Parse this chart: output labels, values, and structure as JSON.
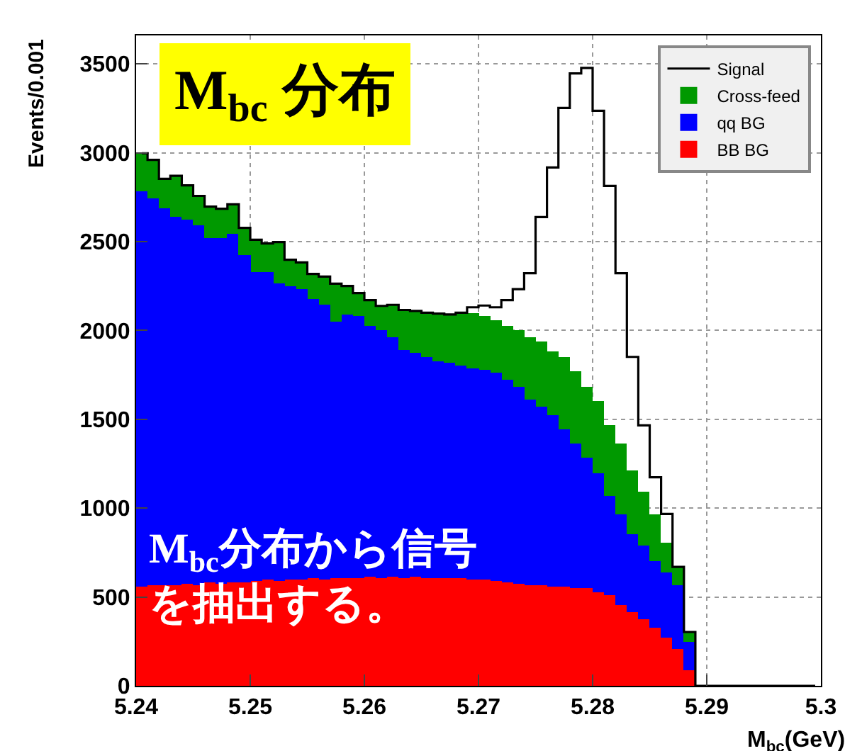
{
  "chart_data": {
    "type": "bar",
    "xlabel": "M$_{bc}$(GeV)",
    "ylabel": "Events/0.001",
    "annotations": [
      "M$_{bc}$ 分布",
      "M$_{bc}$分布から信号を抽出する。"
    ],
    "x": [
      5.2405,
      5.2415,
      5.2425,
      5.2435,
      5.2445,
      5.2455,
      5.2465,
      5.2475,
      5.2485,
      5.2495,
      5.2505,
      5.2515,
      5.2525,
      5.2535,
      5.2545,
      5.2555,
      5.2565,
      5.2575,
      5.2585,
      5.2595,
      5.2605,
      5.2615,
      5.2625,
      5.2635,
      5.2645,
      5.2655,
      5.2665,
      5.2675,
      5.2685,
      5.2695,
      5.2705,
      5.2715,
      5.2725,
      5.2735,
      5.2745,
      5.2755,
      5.2765,
      5.2775,
      5.2785,
      5.2795,
      5.2805,
      5.2815,
      5.2825,
      5.2835,
      5.2845,
      5.2855,
      5.2865,
      5.2875,
      5.2885,
      5.2895,
      5.2905,
      5.2915,
      5.2925,
      5.2935,
      5.2945,
      5.2955,
      5.2965,
      5.2975,
      5.2985,
      5.2995
    ],
    "stacked": true,
    "series": [
      {
        "name": "BB BG",
        "color": "#ff0000",
        "values": [
          560,
          565,
          570,
          565,
          575,
          570,
          580,
          575,
          585,
          580,
          590,
          595,
          590,
          600,
          595,
          605,
          600,
          610,
          605,
          610,
          615,
          610,
          615,
          610,
          615,
          610,
          610,
          605,
          605,
          600,
          600,
          590,
          585,
          575,
          570,
          565,
          560,
          555,
          550,
          550,
          530,
          510,
          456,
          416,
          375,
          327,
          271,
          210,
          90,
          0,
          0,
          0,
          0,
          0,
          0,
          0,
          0,
          0,
          0,
          0
        ]
      },
      {
        "name": "qq BG",
        "color": "#0000ff",
        "values": [
          2222,
          2177,
          2119,
          2072,
          2047,
          2020,
          1938,
          1943,
          1957,
          1843,
          1740,
          1735,
          1673,
          1650,
          1637,
          1573,
          1544,
          1441,
          1486,
          1470,
          1409,
          1390,
          1346,
          1281,
          1255,
          1240,
          1220,
          1210,
          1195,
          1190,
          1175,
          1170,
          1135,
          1105,
          1044,
          1008,
          960,
          885,
          810,
          730,
          670,
          558,
          507,
          439,
          415,
          373,
          369,
          360,
          160,
          0,
          0,
          0,
          0,
          0,
          0,
          0,
          0,
          0,
          0,
          0
        ]
      },
      {
        "name": "Cross-feed",
        "color": "#009900",
        "values": [
          215,
          218,
          164,
          233,
          194,
          167,
          179,
          167,
          168,
          154,
          180,
          159,
          234,
          148,
          151,
          140,
          159,
          212,
          159,
          130,
          146,
          138,
          183,
          224,
          240,
          250,
          265,
          275,
          300,
          310,
          305,
          296,
          304,
          320,
          347,
          367,
          360,
          411,
          412,
          400,
          400,
          398,
          397,
          359,
          302,
          264,
          165,
          99,
          53,
          0,
          0,
          0,
          0,
          0,
          0,
          0,
          0,
          0,
          0,
          0
        ]
      },
      {
        "name": "Signal",
        "type": "step",
        "color": "#000000",
        "values": [
          2997,
          2960,
          2853,
          2870,
          2816,
          2757,
          2697,
          2685,
          2710,
          2577,
          2510,
          2489,
          2497,
          2398,
          2383,
          2318,
          2303,
          2263,
          2250,
          2210,
          2170,
          2138,
          2144,
          2115,
          2110,
          2100,
          2095,
          2090,
          2100,
          2130,
          2140,
          2130,
          2170,
          2232,
          2322,
          2638,
          2917,
          3252,
          3446,
          3477,
          3236,
          2813,
          2322,
          1851,
          1466,
          1174,
          967,
          669,
          303,
          0,
          0,
          0,
          0,
          0,
          0,
          0,
          0,
          0,
          0,
          0
        ]
      }
    ],
    "xlim": [
      5.24,
      5.3
    ],
    "xticks": [
      5.24,
      5.25,
      5.26,
      5.27,
      5.28,
      5.29,
      5.3
    ],
    "ylim": [
      0,
      3660
    ],
    "yticks": [
      0,
      500,
      1000,
      1500,
      2000,
      2500,
      3000,
      3500
    ],
    "grid": true,
    "legend": "top right"
  }
}
